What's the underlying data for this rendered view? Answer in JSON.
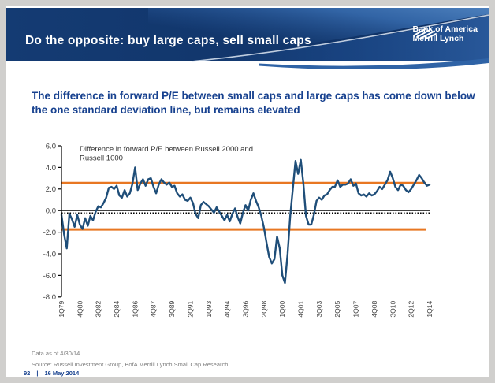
{
  "window": {
    "frame_color": "#d0cfcd",
    "slide_color": "#ffffff"
  },
  "header": {
    "title": "Do the opposite: buy large caps, sell small caps",
    "brand": {
      "line1": "Bank of America",
      "line2": "Merrill Lynch"
    },
    "colors": {
      "band": "#123a72",
      "swoosh_light": "#4a7fc1",
      "swoosh_mid": "#2a5b9e",
      "curve": "#dfe9f4"
    }
  },
  "subtitle": {
    "text": "The difference in forward P/E between small caps and large caps has come down below the one standard deviation line, but remains elevated",
    "color": "#17418f"
  },
  "chart_data": {
    "type": "line",
    "title_lines": [
      "Difference in forward P/E between Russell 2000 and",
      "Russell 1000"
    ],
    "series_name": "Difference in forward P/E between Russell 2000 and Russell 1000",
    "frequency": "quarterly",
    "x_start": "1Q79",
    "x_end": "1Q14",
    "x_tick_labels": [
      "1Q79",
      "4Q80",
      "3Q82",
      "2Q84",
      "1Q86",
      "4Q87",
      "3Q89",
      "2Q91",
      "1Q93",
      "4Q94",
      "3Q96",
      "2Q98",
      "1Q00",
      "4Q01",
      "3Q03",
      "2Q05",
      "1Q07",
      "4Q08",
      "3Q10",
      "2Q12",
      "1Q14"
    ],
    "y_tick_labels": [
      "6.0",
      "4.0",
      "2.0",
      "0.0",
      "-2.0",
      "-4.0",
      "-6.0",
      "-8.0"
    ],
    "ylim": [
      -8,
      6
    ],
    "values": [
      -0.4,
      -2.2,
      -3.5,
      -0.3,
      -0.8,
      -1.5,
      -0.4,
      -1.3,
      -1.7,
      -0.7,
      -1.4,
      -0.5,
      -0.9,
      -0.1,
      0.4,
      0.3,
      0.7,
      1.2,
      2.1,
      2.2,
      2.0,
      2.3,
      1.4,
      1.2,
      1.9,
      1.3,
      1.6,
      2.5,
      4.0,
      1.9,
      2.5,
      2.9,
      2.3,
      2.9,
      3.0,
      2.2,
      1.6,
      2.4,
      2.9,
      2.6,
      2.4,
      2.6,
      2.2,
      2.3,
      1.6,
      1.3,
      1.5,
      1.0,
      0.9,
      1.2,
      0.7,
      -0.3,
      -0.7,
      0.5,
      0.8,
      0.6,
      0.4,
      0.1,
      -0.2,
      0.3,
      -0.1,
      -0.5,
      -0.9,
      -0.4,
      -1.0,
      -0.3,
      0.2,
      -0.6,
      -1.2,
      -0.2,
      0.5,
      0.0,
      1.0,
      1.6,
      0.9,
      0.3,
      -0.5,
      -1.6,
      -3.0,
      -4.3,
      -4.9,
      -4.5,
      -2.4,
      -3.5,
      -6.0,
      -6.7,
      -4.0,
      -0.5,
      2.0,
      4.6,
      3.4,
      4.7,
      2.5,
      -0.5,
      -1.3,
      -1.3,
      -0.4,
      0.9,
      1.2,
      1.0,
      1.4,
      1.5,
      1.9,
      2.2,
      2.2,
      2.8,
      2.2,
      2.4,
      2.4,
      2.5,
      2.9,
      2.3,
      2.5,
      1.6,
      1.4,
      1.5,
      1.3,
      1.6,
      1.4,
      1.5,
      1.8,
      2.2,
      2.0,
      2.4,
      2.8,
      3.6,
      3.0,
      2.2,
      1.9,
      2.4,
      2.3,
      1.9,
      1.7,
      2.0,
      2.4,
      2.8,
      3.3,
      3.0,
      2.6,
      2.3,
      2.4
    ],
    "std_band_upper": 2.55,
    "std_band_lower": -1.75,
    "zero_line": 0.0,
    "mean_line": -0.15,
    "line_color": "#1F4E79",
    "band_color": "#E87722",
    "axis_color": "#000000",
    "label_color": "#404040",
    "grid": false,
    "legend_position": "top-left-inside"
  },
  "footnotes": {
    "data_as_of": "Data as of 4/30/14",
    "source": "Source: Russell Investment Group, BofA Merrill Lynch Small Cap Research"
  },
  "page_footer": {
    "page": "92",
    "separator": "|",
    "date": "16 May 2014"
  }
}
